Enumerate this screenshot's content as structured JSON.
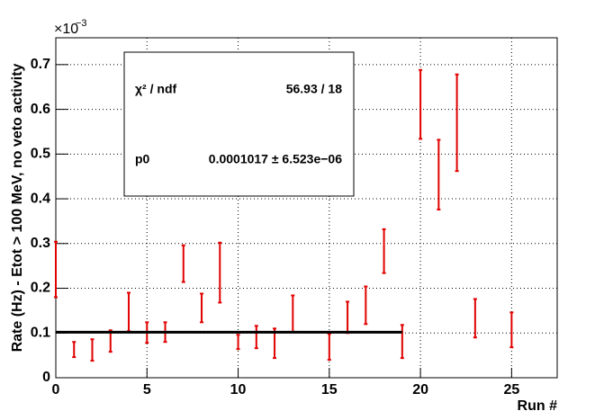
{
  "chart_data": {
    "type": "errorbar",
    "y_axis_label": "Rate (Hz) - Etot > 100 MeV, no veto activity",
    "x_axis_label": "Run #",
    "axis_multiplier": "×10",
    "axis_exponent": "−3",
    "series": [
      {
        "color": "#e00000",
        "x": [
          0,
          1,
          2,
          3,
          4,
          5,
          6,
          7,
          8,
          9,
          10,
          11,
          12,
          13,
          15,
          16,
          17,
          18,
          19,
          20,
          21,
          22,
          23,
          25
        ],
        "values": [
          0.242,
          0.063,
          0.062,
          0.082,
          0.147,
          0.101,
          0.102,
          0.255,
          0.156,
          0.235,
          0.08,
          0.091,
          0.077,
          0.143,
          0.069,
          0.135,
          0.162,
          0.283,
          0.081,
          0.611,
          0.454,
          0.57,
          0.133,
          0.107
        ],
        "errors": [
          0.062,
          0.017,
          0.024,
          0.024,
          0.043,
          0.023,
          0.022,
          0.041,
          0.032,
          0.067,
          0.016,
          0.025,
          0.033,
          0.041,
          0.029,
          0.035,
          0.042,
          0.049,
          0.037,
          0.077,
          0.078,
          0.108,
          0.043,
          0.039
        ]
      }
    ],
    "fit": {
      "value": 0.1017,
      "xrange": [
        0,
        19
      ],
      "color": "#000000"
    },
    "stats": {
      "chi2_label": "χ² / ndf",
      "chi2_value": "56.93 / 18",
      "p0_label": "p0",
      "p0_value": "0.0001017 ± 6.523e−06"
    },
    "xlim": [
      0,
      27.5
    ],
    "ylim": [
      0,
      0.76
    ],
    "xticks": [
      0,
      5,
      10,
      15,
      20,
      25
    ],
    "yticks": [
      0,
      0.1,
      0.2,
      0.3,
      0.4,
      0.5,
      0.6,
      0.7
    ],
    "grid": true
  }
}
